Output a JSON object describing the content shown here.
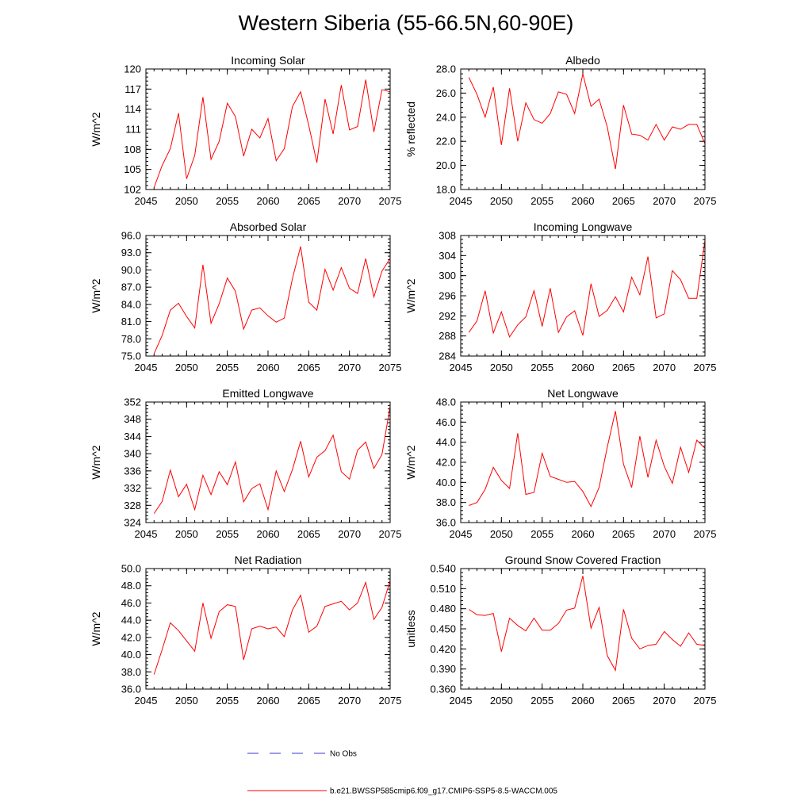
{
  "title": "Western Siberia (55-66.5N,60-90E)",
  "legend": {
    "obs_label": "No Obs",
    "obs_color": "#3a3ad0",
    "model_label": "b.e21.BWSSP585cmip6.f09_g17.CMIP6-SSP5-8.5-WACCM.005",
    "model_color": "#ff0000"
  },
  "chart_data": [
    {
      "type": "line",
      "title": "Incoming Solar",
      "xlabel": "",
      "ylabel": "W/m^2",
      "xlim": [
        2045,
        2075
      ],
      "ylim": [
        102,
        120
      ],
      "xticks": [
        "2045",
        "2050",
        "2055",
        "2060",
        "2065",
        "2070",
        "2075"
      ],
      "yticks": [
        "102",
        "105",
        "108",
        "111",
        "114",
        "117",
        "120"
      ],
      "x": [
        2046,
        2047,
        2048,
        2049,
        2050,
        2051,
        2052,
        2053,
        2054,
        2055,
        2056,
        2057,
        2058,
        2059,
        2060,
        2061,
        2062,
        2063,
        2064,
        2065,
        2066,
        2067,
        2068,
        2069,
        2070,
        2071,
        2072,
        2073,
        2074,
        2075
      ],
      "series": [
        {
          "name": "b.e21.BWSSP585cmip6.f09_g17.CMIP6-SSP5-8.5-WACCM.005",
          "values": [
            102.3,
            105.6,
            108.1,
            113.4,
            103.6,
            107.1,
            115.8,
            106.5,
            109.2,
            114.9,
            112.9,
            107.0,
            111.0,
            109.7,
            112.6,
            106.3,
            108.1,
            114.4,
            116.6,
            111.6,
            106.0,
            115.5,
            110.3,
            117.6,
            110.9,
            111.4,
            118.4,
            110.6,
            116.9,
            116.6
          ]
        }
      ]
    },
    {
      "type": "line",
      "title": "Albedo",
      "xlabel": "",
      "ylabel": "% reflected",
      "xlim": [
        2045,
        2075
      ],
      "ylim": [
        18,
        28
      ],
      "xticks": [
        "2045",
        "2050",
        "2055",
        "2060",
        "2065",
        "2070",
        "2075"
      ],
      "yticks": [
        "18.0",
        "20.0",
        "22.0",
        "24.0",
        "26.0",
        "28.0"
      ],
      "x": [
        2046,
        2047,
        2048,
        2049,
        2050,
        2051,
        2052,
        2053,
        2054,
        2055,
        2056,
        2057,
        2058,
        2059,
        2060,
        2061,
        2062,
        2063,
        2064,
        2065,
        2066,
        2067,
        2068,
        2069,
        2070,
        2071,
        2072,
        2073,
        2074,
        2075
      ],
      "series": [
        {
          "name": "b.e21.BWSSP585cmip6.f09_g17.CMIP6-SSP5-8.5-WACCM.005",
          "values": [
            27.3,
            25.9,
            24.0,
            26.5,
            21.7,
            26.4,
            22.0,
            25.2,
            23.8,
            23.5,
            24.3,
            26.1,
            25.9,
            24.3,
            27.6,
            24.9,
            25.5,
            23.2,
            19.7,
            25.0,
            22.6,
            22.5,
            22.1,
            23.4,
            22.1,
            23.2,
            23.0,
            23.4,
            23.4,
            21.8
          ]
        }
      ]
    },
    {
      "type": "line",
      "title": "Absorbed Solar",
      "xlabel": "",
      "ylabel": "W/m^2",
      "xlim": [
        2045,
        2075
      ],
      "ylim": [
        75,
        96
      ],
      "xticks": [
        "2045",
        "2050",
        "2055",
        "2060",
        "2065",
        "2070",
        "2075"
      ],
      "yticks": [
        "75.0",
        "78.0",
        "81.0",
        "84.0",
        "87.0",
        "90.0",
        "93.0",
        "96.0"
      ],
      "x": [
        2046,
        2047,
        2048,
        2049,
        2050,
        2051,
        2052,
        2053,
        2054,
        2055,
        2056,
        2057,
        2058,
        2059,
        2060,
        2061,
        2062,
        2063,
        2064,
        2065,
        2066,
        2067,
        2068,
        2069,
        2070,
        2071,
        2072,
        2073,
        2074,
        2075
      ],
      "series": [
        {
          "name": "b.e21.BWSSP585cmip6.f09_g17.CMIP6-SSP5-8.5-WACCM.005",
          "values": [
            75.4,
            78.6,
            83.0,
            84.2,
            81.9,
            79.9,
            90.9,
            80.7,
            84.1,
            88.6,
            86.3,
            79.7,
            83.0,
            83.4,
            82.0,
            80.9,
            81.6,
            88.5,
            94.1,
            84.4,
            83.0,
            90.1,
            86.5,
            90.4,
            86.8,
            85.9,
            92.0,
            85.3,
            89.8,
            92.0
          ]
        }
      ]
    },
    {
      "type": "line",
      "title": "Incoming Longwave",
      "xlabel": "",
      "ylabel": "W/m^2",
      "xlim": [
        2045,
        2075
      ],
      "ylim": [
        284,
        308
      ],
      "xticks": [
        "2045",
        "2050",
        "2055",
        "2060",
        "2065",
        "2070",
        "2075"
      ],
      "yticks": [
        "284",
        "288",
        "292",
        "296",
        "300",
        "304",
        "308"
      ],
      "x": [
        2046,
        2047,
        2048,
        2049,
        2050,
        2051,
        2052,
        2053,
        2054,
        2055,
        2056,
        2057,
        2058,
        2059,
        2060,
        2061,
        2062,
        2063,
        2064,
        2065,
        2066,
        2067,
        2068,
        2069,
        2070,
        2071,
        2072,
        2073,
        2074,
        2075
      ],
      "series": [
        {
          "name": "b.e21.BWSSP585cmip6.f09_g17.CMIP6-SSP5-8.5-WACCM.005",
          "values": [
            288.7,
            291.0,
            297.0,
            288.6,
            292.8,
            287.8,
            290.2,
            291.8,
            297.0,
            289.9,
            297.5,
            288.7,
            291.8,
            293.0,
            288.1,
            298.4,
            291.9,
            293.1,
            295.8,
            292.8,
            299.7,
            296.2,
            303.8,
            291.6,
            292.4,
            301.0,
            299.2,
            295.5,
            295.5,
            307.0
          ]
        }
      ]
    },
    {
      "type": "line",
      "title": "Emitted Longwave",
      "xlabel": "",
      "ylabel": "W/m^2",
      "xlim": [
        2045,
        2075
      ],
      "ylim": [
        324,
        352
      ],
      "xticks": [
        "2045",
        "2050",
        "2055",
        "2060",
        "2065",
        "2070",
        "2075"
      ],
      "yticks": [
        "324",
        "328",
        "332",
        "336",
        "340",
        "344",
        "348",
        "352"
      ],
      "x": [
        2046,
        2047,
        2048,
        2049,
        2050,
        2051,
        2052,
        2053,
        2054,
        2055,
        2056,
        2057,
        2058,
        2059,
        2060,
        2061,
        2062,
        2063,
        2064,
        2065,
        2066,
        2067,
        2068,
        2069,
        2070,
        2071,
        2072,
        2073,
        2074,
        2075
      ],
      "series": [
        {
          "name": "b.e21.BWSSP585cmip6.f09_g17.CMIP6-SSP5-8.5-WACCM.005",
          "values": [
            326.1,
            328.9,
            336.2,
            330.0,
            332.9,
            327.0,
            335.0,
            330.5,
            335.8,
            332.8,
            338.1,
            328.8,
            331.9,
            333.0,
            327.0,
            336.0,
            331.2,
            336.3,
            342.9,
            334.6,
            339.2,
            340.7,
            344.3,
            335.8,
            334.1,
            340.8,
            342.7,
            336.6,
            339.8,
            351.0
          ]
        }
      ]
    },
    {
      "type": "line",
      "title": "Net Longwave",
      "xlabel": "",
      "ylabel": "W/m^2",
      "xlim": [
        2045,
        2075
      ],
      "ylim": [
        36,
        48
      ],
      "xticks": [
        "2045",
        "2050",
        "2055",
        "2060",
        "2065",
        "2070",
        "2075"
      ],
      "yticks": [
        "36.0",
        "38.0",
        "40.0",
        "42.0",
        "44.0",
        "46.0",
        "48.0"
      ],
      "x": [
        2046,
        2047,
        2048,
        2049,
        2050,
        2051,
        2052,
        2053,
        2054,
        2055,
        2056,
        2057,
        2058,
        2059,
        2060,
        2061,
        2062,
        2063,
        2064,
        2065,
        2066,
        2067,
        2068,
        2069,
        2070,
        2071,
        2072,
        2073,
        2074,
        2075
      ],
      "series": [
        {
          "name": "b.e21.BWSSP585cmip6.f09_g17.CMIP6-SSP5-8.5-WACCM.005",
          "values": [
            37.7,
            38.0,
            39.3,
            41.5,
            40.2,
            39.4,
            44.9,
            38.8,
            39.0,
            42.9,
            40.6,
            40.3,
            40.0,
            40.1,
            39.1,
            37.6,
            39.5,
            43.5,
            47.1,
            41.8,
            39.5,
            44.6,
            40.5,
            44.2,
            41.6,
            39.9,
            43.5,
            41.0,
            44.2,
            43.4
          ]
        }
      ]
    },
    {
      "type": "line",
      "title": "Net Radiation",
      "xlabel": "",
      "ylabel": "W/m^2",
      "xlim": [
        2045,
        2075
      ],
      "ylim": [
        36,
        50
      ],
      "xticks": [
        "2045",
        "2050",
        "2055",
        "2060",
        "2065",
        "2070",
        "2075"
      ],
      "yticks": [
        "36.0",
        "38.0",
        "40.0",
        "42.0",
        "44.0",
        "46.0",
        "48.0",
        "50.0"
      ],
      "x": [
        2046,
        2047,
        2048,
        2049,
        2050,
        2051,
        2052,
        2053,
        2054,
        2055,
        2056,
        2057,
        2058,
        2059,
        2060,
        2061,
        2062,
        2063,
        2064,
        2065,
        2066,
        2067,
        2068,
        2069,
        2070,
        2071,
        2072,
        2073,
        2074,
        2075
      ],
      "series": [
        {
          "name": "b.e21.BWSSP585cmip6.f09_g17.CMIP6-SSP5-8.5-WACCM.005",
          "values": [
            37.7,
            40.6,
            43.7,
            42.8,
            41.6,
            40.4,
            46.0,
            41.9,
            45.0,
            45.8,
            45.6,
            39.4,
            43.0,
            43.3,
            43.0,
            43.2,
            42.1,
            45.2,
            46.9,
            42.6,
            43.3,
            45.6,
            45.9,
            46.2,
            45.2,
            46.0,
            48.4,
            44.1,
            45.5,
            48.6
          ]
        }
      ]
    },
    {
      "type": "line",
      "title": "Ground Snow Covered Fraction",
      "xlabel": "",
      "ylabel": "unitless",
      "xlim": [
        2045,
        2075
      ],
      "ylim": [
        0.36,
        0.54
      ],
      "xticks": [
        "2045",
        "2050",
        "2055",
        "2060",
        "2065",
        "2070",
        "2075"
      ],
      "yticks": [
        "0.360",
        "0.390",
        "0.420",
        "0.450",
        "0.480",
        "0.510",
        "0.540"
      ],
      "x": [
        2046,
        2047,
        2048,
        2049,
        2050,
        2051,
        2052,
        2053,
        2054,
        2055,
        2056,
        2057,
        2058,
        2059,
        2060,
        2061,
        2062,
        2063,
        2064,
        2065,
        2066,
        2067,
        2068,
        2069,
        2070,
        2071,
        2072,
        2073,
        2074,
        2075
      ],
      "series": [
        {
          "name": "b.e21.BWSSP585cmip6.f09_g17.CMIP6-SSP5-8.5-WACCM.005",
          "values": [
            0.479,
            0.471,
            0.47,
            0.473,
            0.416,
            0.466,
            0.455,
            0.447,
            0.466,
            0.448,
            0.448,
            0.458,
            0.478,
            0.481,
            0.529,
            0.451,
            0.482,
            0.41,
            0.388,
            0.479,
            0.436,
            0.42,
            0.425,
            0.427,
            0.446,
            0.434,
            0.424,
            0.444,
            0.427,
            0.425
          ]
        }
      ]
    }
  ]
}
